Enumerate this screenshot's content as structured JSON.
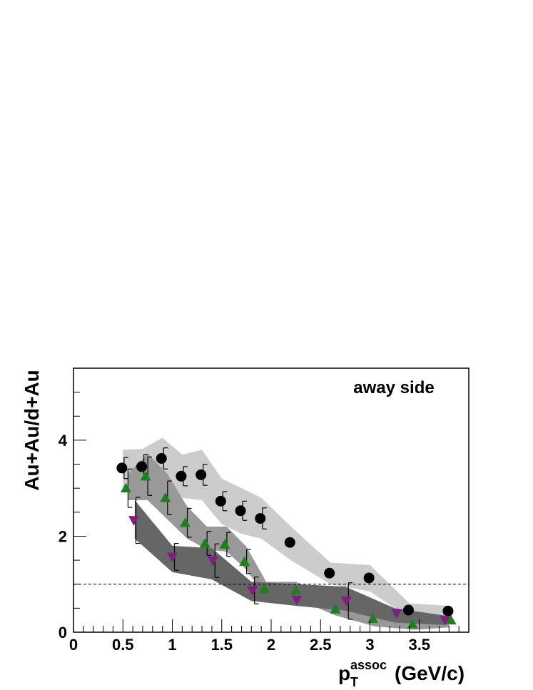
{
  "chart_data": {
    "type": "scatter",
    "title": "",
    "annotation": "away side",
    "ylabel": "Au+Au/d+Au",
    "xlabel": {
      "main": "p",
      "subscript": "T",
      "superscript": "assoc",
      "unit": "(GeV/c)"
    },
    "xlim": [
      0,
      4.0
    ],
    "ylim": [
      0,
      5.5
    ],
    "x_ticks": [
      {
        "value": 0,
        "label": "0"
      },
      {
        "value": 0.5,
        "label": "0.5"
      },
      {
        "value": 1,
        "label": "1"
      },
      {
        "value": 1.5,
        "label": "1.5"
      },
      {
        "value": 2,
        "label": "2"
      },
      {
        "value": 2.5,
        "label": "2.5"
      },
      {
        "value": 3,
        "label": "3"
      },
      {
        "value": 3.5,
        "label": "3.5"
      }
    ],
    "y_ticks": [
      {
        "value": 0,
        "label": "0"
      },
      {
        "value": 2,
        "label": "2"
      },
      {
        "value": 4,
        "label": "4"
      }
    ],
    "reference_line": 1,
    "grid": false,
    "bands": [
      {
        "color": "#cccccc",
        "upper": [
          [
            0.5,
            3.8
          ],
          [
            0.7,
            3.82
          ],
          [
            0.9,
            4.05
          ],
          [
            1.1,
            3.7
          ],
          [
            1.3,
            3.8
          ],
          [
            1.5,
            3.2
          ],
          [
            1.7,
            3.0
          ],
          [
            1.9,
            2.8
          ],
          [
            2.2,
            2.2
          ],
          [
            2.6,
            1.45
          ],
          [
            3.0,
            1.4
          ],
          [
            3.4,
            0.6
          ],
          [
            3.8,
            0.55
          ]
        ],
        "lower": [
          [
            0.5,
            3.0
          ],
          [
            0.7,
            3.05
          ],
          [
            0.9,
            3.2
          ],
          [
            1.1,
            2.8
          ],
          [
            1.3,
            2.75
          ],
          [
            1.5,
            2.25
          ],
          [
            1.7,
            2.05
          ],
          [
            1.9,
            1.95
          ],
          [
            2.2,
            1.5
          ],
          [
            2.6,
            1.0
          ],
          [
            3.0,
            0.85
          ],
          [
            3.4,
            0.3
          ],
          [
            3.8,
            0.3
          ]
        ]
      },
      {
        "color": "#999999",
        "upper": [
          [
            0.55,
            3.3
          ],
          [
            0.75,
            3.72
          ],
          [
            0.95,
            3.3
          ],
          [
            1.15,
            2.62
          ],
          [
            1.35,
            2.2
          ],
          [
            1.55,
            2.2
          ],
          [
            1.75,
            1.78
          ],
          [
            1.95,
            1.05
          ],
          [
            2.25,
            1.05
          ],
          [
            2.65,
            0.7
          ],
          [
            3.05,
            0.5
          ],
          [
            3.45,
            0.35
          ],
          [
            3.8,
            0.3
          ]
        ],
        "lower": [
          [
            0.55,
            2.75
          ],
          [
            0.75,
            2.75
          ],
          [
            0.95,
            2.35
          ],
          [
            1.15,
            1.95
          ],
          [
            1.35,
            1.72
          ],
          [
            1.55,
            1.68
          ],
          [
            1.75,
            1.3
          ],
          [
            1.95,
            0.72
          ],
          [
            2.25,
            0.7
          ],
          [
            2.65,
            0.35
          ],
          [
            3.05,
            0.12
          ],
          [
            3.45,
            0.05
          ],
          [
            3.8,
            0.1
          ]
        ]
      },
      {
        "color": "#666666",
        "upper": [
          [
            0.62,
            2.75
          ],
          [
            1.0,
            1.8
          ],
          [
            1.4,
            1.75
          ],
          [
            1.8,
            1.05
          ],
          [
            2.25,
            1.0
          ],
          [
            2.75,
            0.95
          ],
          [
            3.25,
            0.5
          ],
          [
            3.75,
            0.35
          ]
        ],
        "lower": [
          [
            0.62,
            1.95
          ],
          [
            1.0,
            1.25
          ],
          [
            1.4,
            1.1
          ],
          [
            1.8,
            0.65
          ],
          [
            2.25,
            0.55
          ],
          [
            2.75,
            0.45
          ],
          [
            3.25,
            0.2
          ],
          [
            3.75,
            0.15
          ]
        ]
      }
    ],
    "series": [
      {
        "marker": "circle",
        "color": "#000000",
        "points": [
          {
            "x": 0.49,
            "y": 3.42,
            "err": 0.22
          },
          {
            "x": 0.69,
            "y": 3.45,
            "err": 0.25
          },
          {
            "x": 0.89,
            "y": 3.62,
            "err": 0.22
          },
          {
            "x": 1.09,
            "y": 3.25,
            "err": 0.2
          },
          {
            "x": 1.29,
            "y": 3.28,
            "err": 0.22
          },
          {
            "x": 1.49,
            "y": 2.73,
            "err": 0.2
          },
          {
            "x": 1.69,
            "y": 2.53,
            "err": 0.2
          },
          {
            "x": 1.89,
            "y": 2.37,
            "err": 0.22
          },
          {
            "x": 2.19,
            "y": 1.87,
            "err": 0.0
          },
          {
            "x": 2.59,
            "y": 1.23,
            "err": 0.0
          },
          {
            "x": 2.99,
            "y": 1.13,
            "err": 0.0
          },
          {
            "x": 3.39,
            "y": 0.46,
            "err": 0.0
          },
          {
            "x": 3.79,
            "y": 0.44,
            "err": 0.0
          }
        ]
      },
      {
        "marker": "triangle-up",
        "color": "#1f7f1f",
        "points": [
          {
            "x": 0.53,
            "y": 3.0,
            "err": 0.4
          },
          {
            "x": 0.73,
            "y": 3.25,
            "err": 0.4
          },
          {
            "x": 0.93,
            "y": 2.8,
            "err": 0.35
          },
          {
            "x": 1.13,
            "y": 2.28,
            "err": 0.3
          },
          {
            "x": 1.33,
            "y": 1.85,
            "err": 0.25
          },
          {
            "x": 1.53,
            "y": 1.83,
            "err": 0.25
          },
          {
            "x": 1.73,
            "y": 1.47,
            "err": 0.25
          },
          {
            "x": 1.93,
            "y": 0.9,
            "err": 0.0
          },
          {
            "x": 2.25,
            "y": 0.87,
            "err": 0.0
          },
          {
            "x": 2.65,
            "y": 0.48,
            "err": 0.0
          },
          {
            "x": 3.03,
            "y": 0.28,
            "err": 0.0
          },
          {
            "x": 3.43,
            "y": 0.17,
            "err": 0.0
          },
          {
            "x": 3.82,
            "y": 0.25,
            "err": 0.0
          }
        ]
      },
      {
        "marker": "triangle-down",
        "color": "#7f1f7f",
        "points": [
          {
            "x": 0.61,
            "y": 2.33,
            "err": 0.48
          },
          {
            "x": 1.0,
            "y": 1.57,
            "err": 0.28
          },
          {
            "x": 1.41,
            "y": 1.49,
            "err": 0.35
          },
          {
            "x": 1.81,
            "y": 0.87,
            "err": 0.28
          },
          {
            "x": 2.26,
            "y": 0.67,
            "err": 0.0
          },
          {
            "x": 2.76,
            "y": 0.65,
            "err": 0.38
          },
          {
            "x": 3.27,
            "y": 0.39,
            "err": 0.0
          },
          {
            "x": 3.76,
            "y": 0.25,
            "err": 0.0
          }
        ]
      }
    ]
  }
}
